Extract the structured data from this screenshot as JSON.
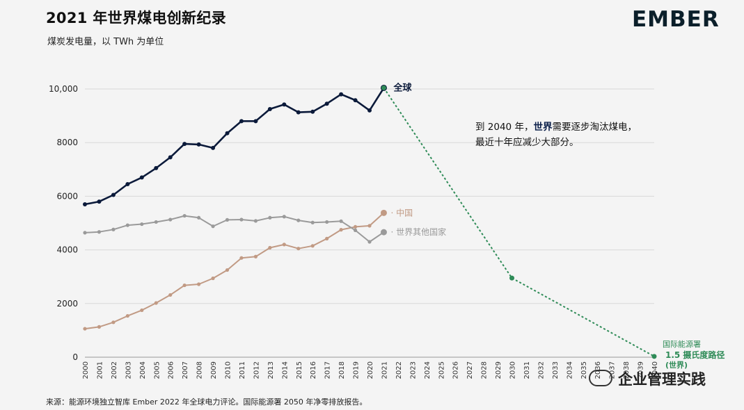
{
  "header": {
    "title": "2021 年世界煤电创新纪录",
    "subtitle": "煤炭发电量，以 TWh 为单位",
    "brand": "EMBER"
  },
  "annotation": {
    "line1_pre": "到 2040 年，",
    "line1_bold": "世界",
    "line1_post": "需要逐步淘汰煤电，",
    "line2": "最近十年应减少大部分。"
  },
  "footer": {
    "source": "来源：能源环境独立智库 Ember 2022 年全球电力评论。国际能源署 2050 年净零排放报告。"
  },
  "watermark": {
    "text": "企业管理实践"
  },
  "colors": {
    "world": "#0b1a3a",
    "china": "#c19a84",
    "rest": "#9a9a9a",
    "iea": "#2e8b57",
    "grid": "#d8d8d8"
  },
  "chart_data": {
    "type": "line",
    "title": "2021 年世界煤电创新纪录",
    "ylabel": "煤炭发电量，以 TWh 为单位",
    "ylim": [
      0,
      10000
    ],
    "xlim": [
      2000,
      2040
    ],
    "grid": true,
    "y_ticks": [
      0,
      2000,
      4000,
      6000,
      8000,
      10000
    ],
    "y_tick_labels": [
      "0",
      "2000",
      "4000",
      "6000",
      "8000",
      "10,000"
    ],
    "x_ticks": [
      2000,
      2001,
      2002,
      2003,
      2004,
      2005,
      2006,
      2007,
      2008,
      2009,
      2010,
      2011,
      2012,
      2013,
      2014,
      2015,
      2016,
      2017,
      2018,
      2019,
      2020,
      2021,
      2022,
      2023,
      2024,
      2025,
      2026,
      2027,
      2028,
      2029,
      2030,
      2031,
      2032,
      2033,
      2034,
      2035,
      2036,
      2037,
      2038,
      2039,
      2040
    ],
    "series": [
      {
        "name": "全球",
        "color": "#0b1a3a",
        "x": [
          2000,
          2001,
          2002,
          2003,
          2004,
          2005,
          2006,
          2007,
          2008,
          2009,
          2010,
          2011,
          2012,
          2013,
          2014,
          2015,
          2016,
          2017,
          2018,
          2019,
          2020,
          2021
        ],
        "values": [
          5700,
          5800,
          6050,
          6450,
          6700,
          7050,
          7450,
          7950,
          7930,
          7800,
          8350,
          8800,
          8800,
          9250,
          9420,
          9130,
          9150,
          9450,
          9800,
          9580,
          9200,
          10040
        ]
      },
      {
        "name": "中国",
        "color": "#c19a84",
        "x": [
          2000,
          2001,
          2002,
          2003,
          2004,
          2005,
          2006,
          2007,
          2008,
          2009,
          2010,
          2011,
          2012,
          2013,
          2014,
          2015,
          2016,
          2017,
          2018,
          2019,
          2020,
          2021
        ],
        "values": [
          1060,
          1130,
          1300,
          1540,
          1750,
          2020,
          2320,
          2680,
          2720,
          2940,
          3250,
          3700,
          3750,
          4080,
          4200,
          4050,
          4150,
          4420,
          4750,
          4860,
          4900,
          5380
        ]
      },
      {
        "name": "世界其他国家",
        "color": "#9a9a9a",
        "x": [
          2000,
          2001,
          2002,
          2003,
          2004,
          2005,
          2006,
          2007,
          2008,
          2009,
          2010,
          2011,
          2012,
          2013,
          2014,
          2015,
          2016,
          2017,
          2018,
          2019,
          2020,
          2021
        ],
        "values": [
          4640,
          4670,
          4760,
          4920,
          4960,
          5040,
          5130,
          5270,
          5200,
          4880,
          5120,
          5130,
          5080,
          5200,
          5240,
          5100,
          5020,
          5040,
          5070,
          4730,
          4300,
          4660
        ]
      },
      {
        "name": "国际能源署 1.5 摄氏度路径 (世界)",
        "label_line1": "国际能源署",
        "label_line2": "1.5 摄氏度路径",
        "label_line3": "(世界)",
        "color": "#2e8b57",
        "style": "dashed",
        "x": [
          2021,
          2030,
          2040
        ],
        "values": [
          10040,
          2950,
          30
        ]
      }
    ]
  }
}
